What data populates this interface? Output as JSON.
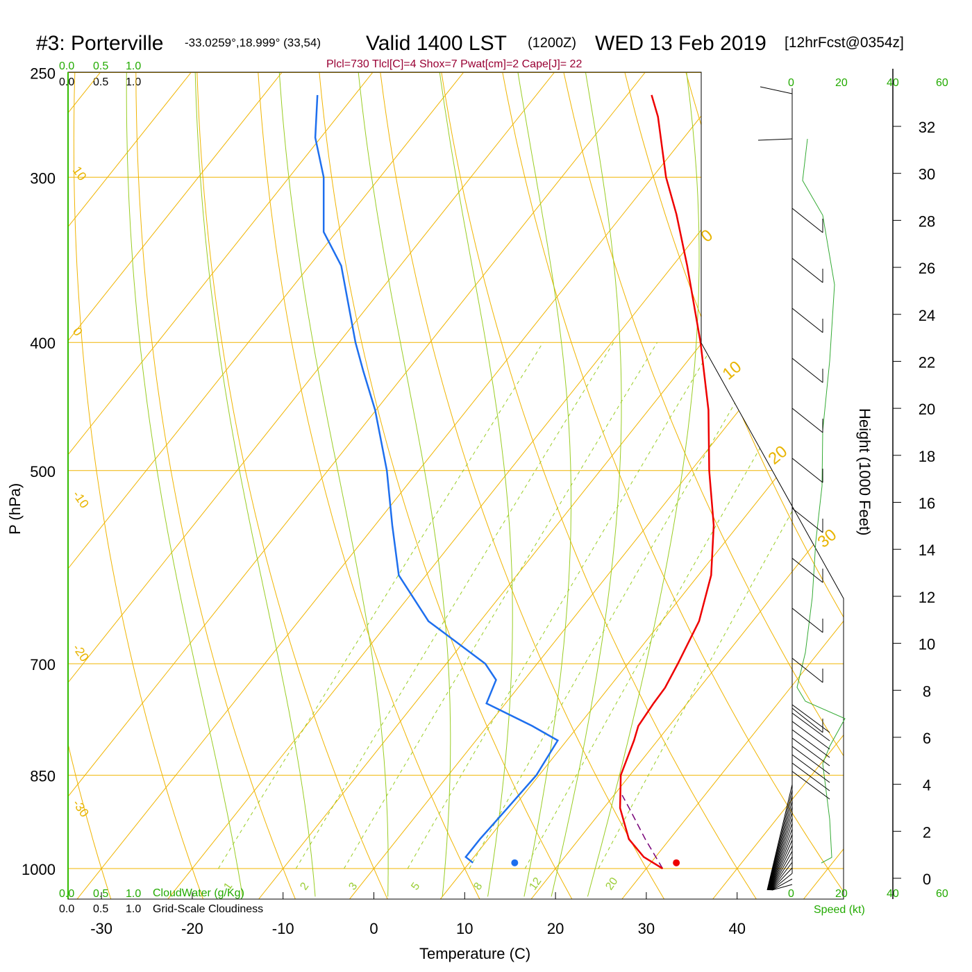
{
  "header": {
    "station": "#3: Porterville",
    "coords": "-33.0259°,18.999° (33,54)",
    "valid": "Valid 1400 LST",
    "utc": "(1200Z)",
    "date": "WED 13 Feb 2019",
    "forecast": "[12hrFcst@0354z]",
    "indices": "Plcl=730 Tlcl[C]=4 Shox=7 Pwat[cm]=2 Cape[J]= 22"
  },
  "scales": {
    "cloudwater_top": [
      "0.0",
      "0.5",
      "1.0"
    ],
    "cloudiness_top": [
      "0.0",
      "0.5",
      "1.0"
    ],
    "cloudwater_bottom": [
      "0.0",
      "0.5",
      "1.0"
    ],
    "cloudiness_bottom": [
      "0.0",
      "0.5",
      "1.0"
    ],
    "cloudwater_label": "CloudWater (g/Kg)",
    "cloudiness_label": "Grid-Scale Cloudiness",
    "speed_ticks": [
      "0",
      "20",
      "40",
      "60"
    ],
    "speed_label": "Speed (kt)"
  },
  "chart_data": {
    "type": "skew-t",
    "xlabel": "Temperature (C)",
    "ylabel": "P (hPa)",
    "y2label": "Height (1000 Feet)",
    "x_ticks": [
      -30,
      -20,
      -10,
      0,
      10,
      20,
      30,
      40
    ],
    "p_ticks": [
      250,
      300,
      400,
      500,
      700,
      850,
      1000
    ],
    "height_ticks": [
      0,
      2,
      4,
      6,
      8,
      10,
      12,
      14,
      16,
      18,
      20,
      22,
      24,
      26,
      28,
      30,
      32
    ],
    "isotherm_labels": [
      "10",
      "0",
      "-10",
      "-20",
      "-30"
    ],
    "isotherm_labels_right": [
      "0",
      "10",
      "20",
      "30"
    ],
    "mixing_ratio_labels": [
      "1",
      "2",
      "3",
      "5",
      "8",
      "12",
      "20"
    ],
    "temperature": [
      [
        1000,
        31.8
      ],
      [
        980,
        28.7
      ],
      [
        950,
        25.5
      ],
      [
        900,
        21.8
      ],
      [
        850,
        19.0
      ],
      [
        800,
        17.4
      ],
      [
        780,
        16.6
      ],
      [
        750,
        16.3
      ],
      [
        730,
        16.2
      ],
      [
        700,
        15.5
      ],
      [
        650,
        14.1
      ],
      [
        600,
        11.4
      ],
      [
        550,
        7.3
      ],
      [
        500,
        2.0
      ],
      [
        450,
        -3.4
      ],
      [
        400,
        -10.2
      ],
      [
        350,
        -18.4
      ],
      [
        320,
        -24.1
      ],
      [
        300,
        -28.5
      ],
      [
        270,
        -34.7
      ],
      [
        260,
        -37.3
      ]
    ],
    "dewpoint": [
      [
        990,
        10.4
      ],
      [
        980,
        9.1
      ],
      [
        950,
        9.1
      ],
      [
        900,
        9.4
      ],
      [
        850,
        9.7
      ],
      [
        800,
        9.0
      ],
      [
        780,
        4.9
      ],
      [
        750,
        -2.1
      ],
      [
        720,
        -3.1
      ],
      [
        700,
        -5.7
      ],
      [
        650,
        -15.7
      ],
      [
        600,
        -23.0
      ],
      [
        550,
        -28.1
      ],
      [
        500,
        -33.5
      ],
      [
        450,
        -40.1
      ],
      [
        420,
        -44.9
      ],
      [
        400,
        -48.2
      ],
      [
        350,
        -56.5
      ],
      [
        330,
        -61.4
      ],
      [
        300,
        -66.2
      ],
      [
        280,
        -70.6
      ],
      [
        260,
        -74.1
      ]
    ],
    "surface_temperature": 32.8,
    "surface_dewpoint": 15.0,
    "parcel": [
      [
        1000,
        31.8
      ],
      [
        950,
        27.3
      ],
      [
        900,
        22.8
      ],
      [
        880,
        20.9
      ]
    ]
  }
}
